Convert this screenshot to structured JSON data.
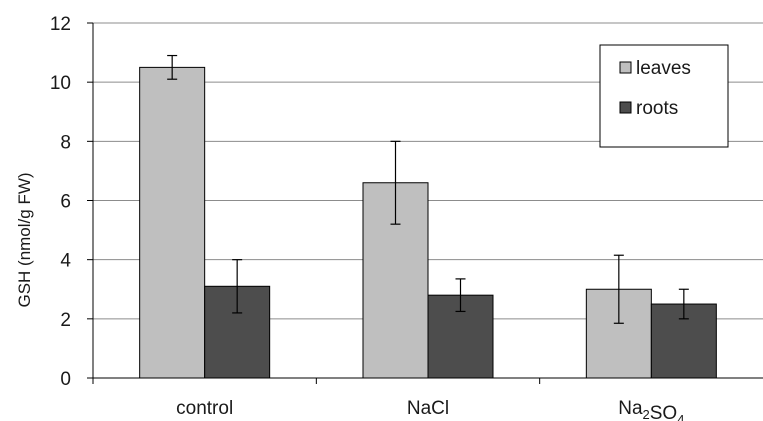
{
  "chart_data": {
    "type": "bar",
    "title": "",
    "xlabel": "",
    "ylabel": "GSH (nmol/g FW)",
    "ylim": [
      0,
      12
    ],
    "yticks": [
      0,
      2,
      4,
      6,
      8,
      10,
      12
    ],
    "grid": true,
    "legend_position": "top-right",
    "categories": [
      {
        "label": "control"
      },
      {
        "label": "NaCl"
      },
      {
        "label": "Na",
        "sub": "2",
        "mid": "SO",
        "sub2": "4"
      }
    ],
    "series": [
      {
        "name": "leaves",
        "color": "#bfbfbf",
        "values": [
          10.5,
          6.6,
          3.0
        ],
        "error": [
          0.4,
          1.4,
          1.15
        ]
      },
      {
        "name": "roots",
        "color": "#4d4d4d",
        "values": [
          3.1,
          2.8,
          2.5
        ],
        "error": [
          0.9,
          0.55,
          0.5
        ]
      }
    ]
  }
}
